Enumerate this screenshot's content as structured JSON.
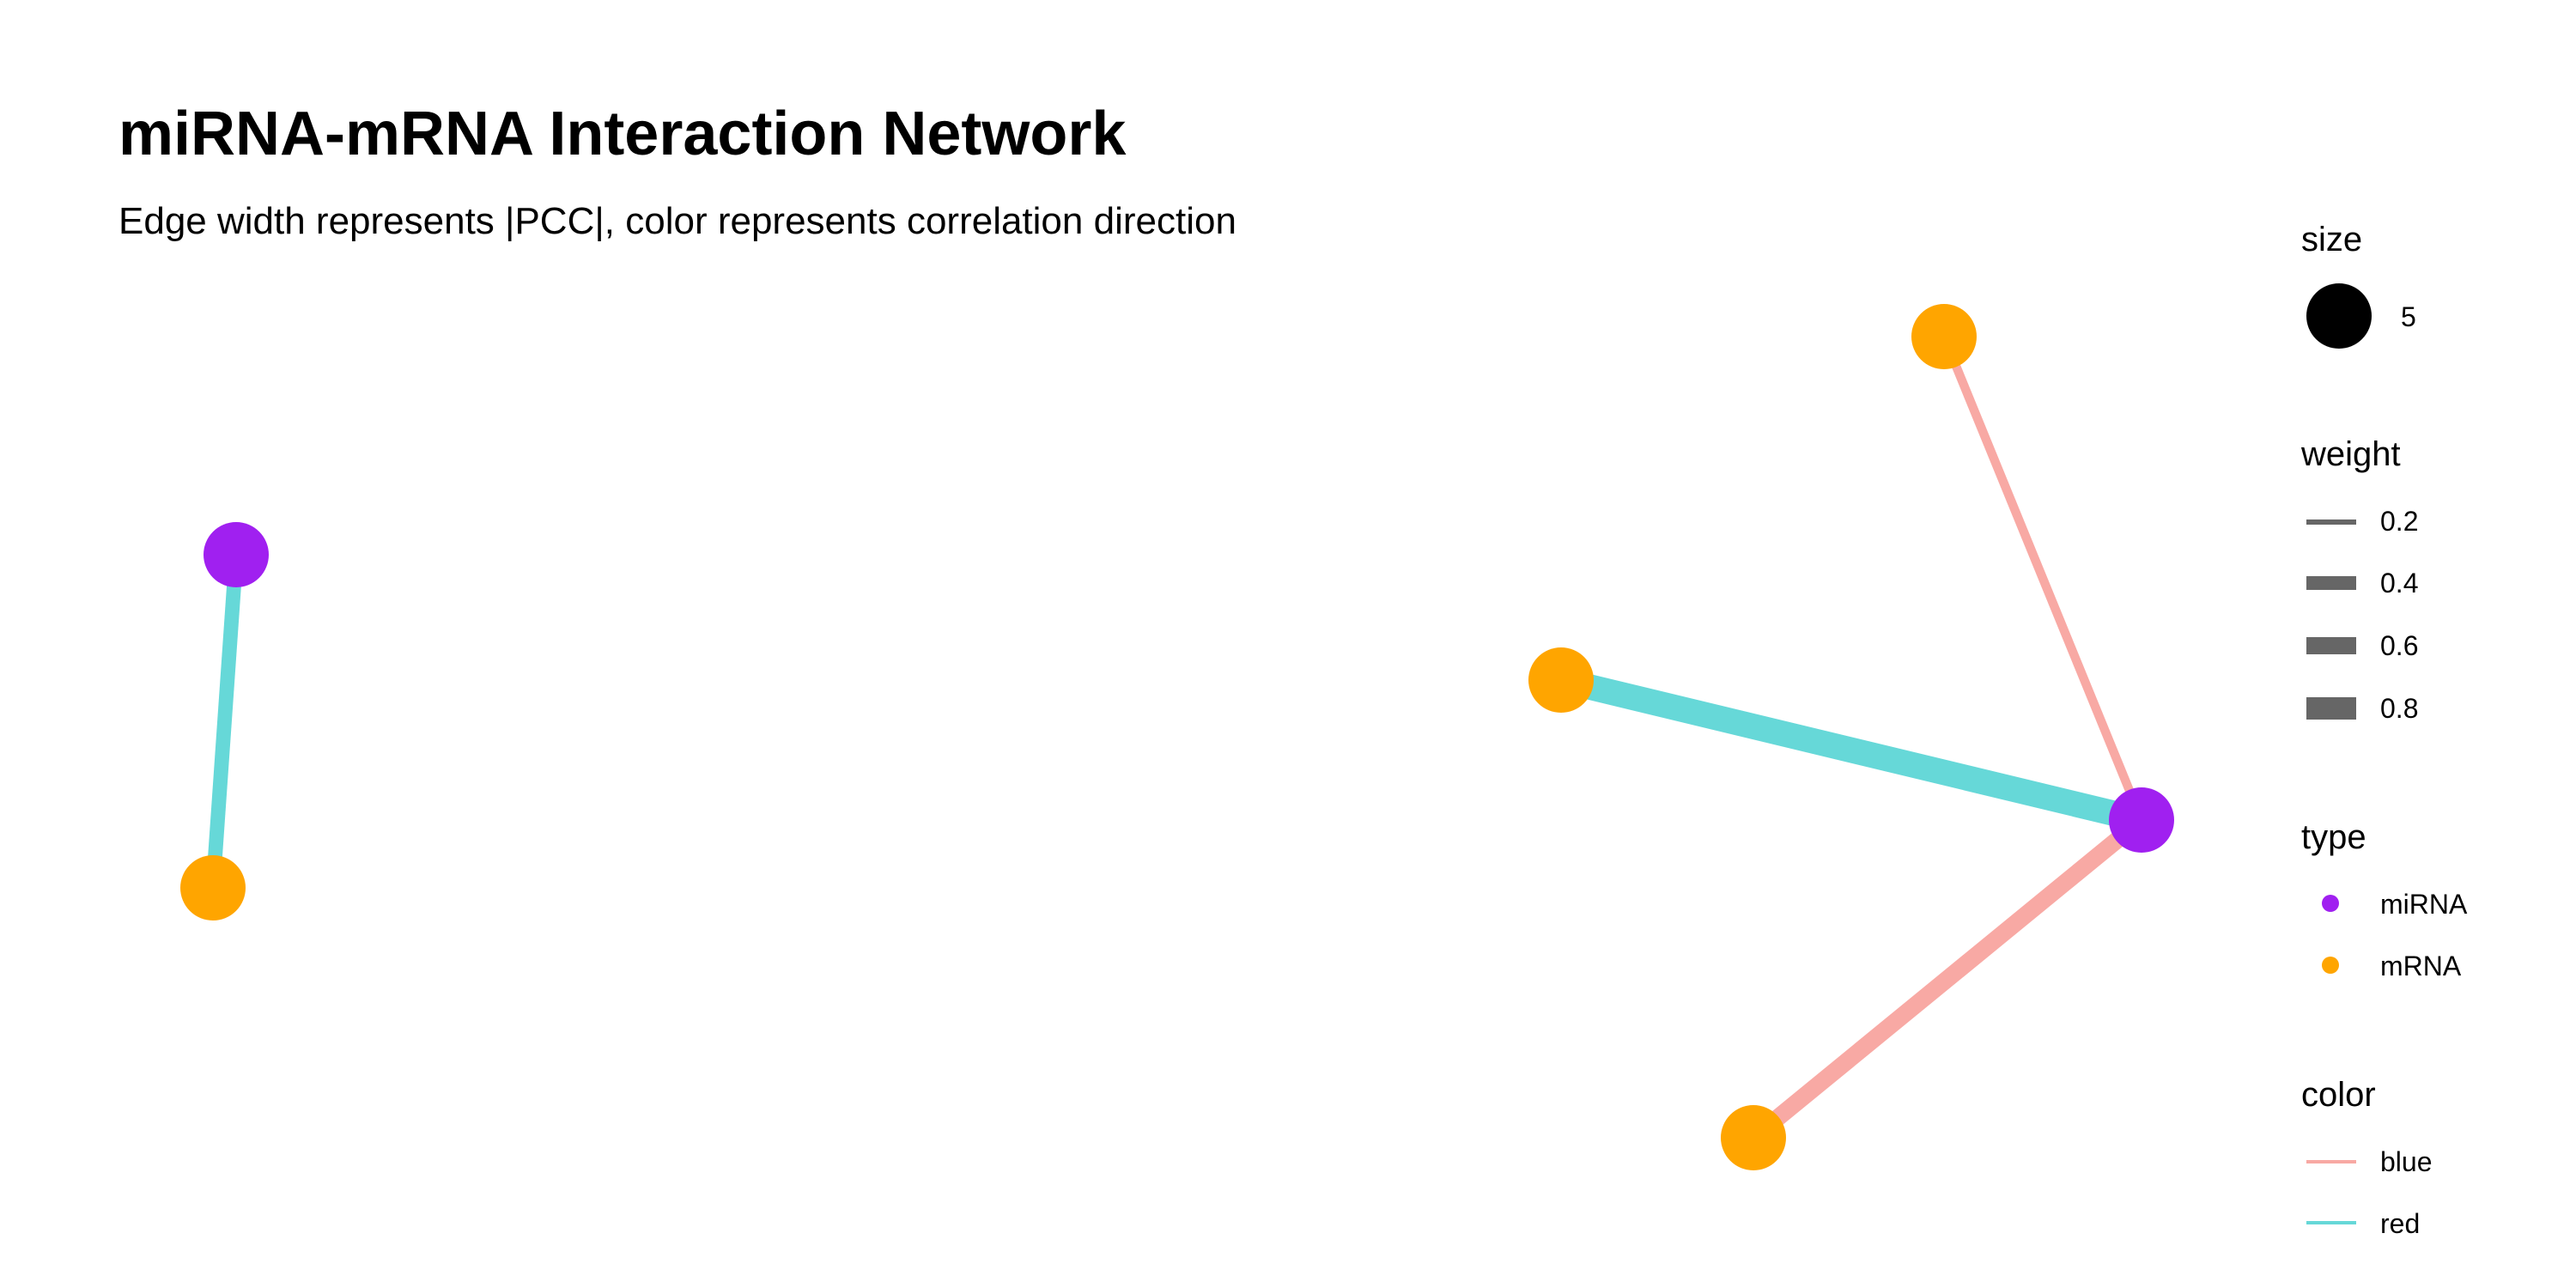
{
  "title": "miRNA-mRNA Interaction Network",
  "subtitle": "Edge width represents |PCC|, color represents correlation direction",
  "colors": {
    "miRNA": "#A020F0",
    "mRNA": "#FFA500",
    "blue": "#F8A9A4",
    "red": "#66D8D8",
    "legend_gray": "#666666"
  },
  "network": {
    "nodes": [
      {
        "id": "n1",
        "type": "miRNA"
      },
      {
        "id": "n2",
        "type": "mRNA"
      },
      {
        "id": "n3",
        "type": "mRNA"
      },
      {
        "id": "n4",
        "type": "mRNA"
      },
      {
        "id": "n5",
        "type": "miRNA"
      },
      {
        "id": "n6",
        "type": "mRNA"
      }
    ],
    "edges": [
      {
        "source": "n1",
        "target": "n2",
        "weight": 0.4,
        "color": "red"
      },
      {
        "source": "n3",
        "target": "n5",
        "weight": 0.2,
        "color": "blue"
      },
      {
        "source": "n4",
        "target": "n5",
        "weight": 0.8,
        "color": "red"
      },
      {
        "source": "n6",
        "target": "n5",
        "weight": 0.5,
        "color": "blue"
      }
    ]
  },
  "legend": {
    "size": {
      "title": "size",
      "items": [
        "5"
      ]
    },
    "weight": {
      "title": "weight",
      "items": [
        "0.2",
        "0.4",
        "0.6",
        "0.8"
      ]
    },
    "type": {
      "title": "type",
      "items": [
        "miRNA",
        "mRNA"
      ]
    },
    "color": {
      "title": "color",
      "items": [
        "blue",
        "red"
      ]
    }
  }
}
